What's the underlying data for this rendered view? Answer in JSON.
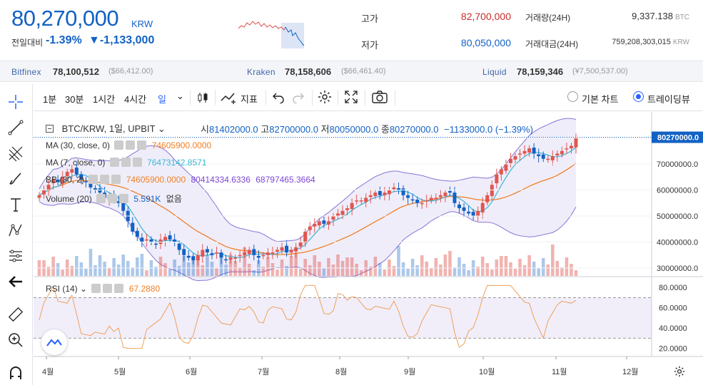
{
  "header": {
    "price": "80,270,000",
    "price_unit": "KRW",
    "change_label": "전일대비",
    "change_pct": "-1.39%",
    "change_abs": "▼-1,133,000",
    "high_label": "고가",
    "high_value": "82,700,000",
    "low_label": "저가",
    "low_value": "80,050,000",
    "volume_label": "거래량(24H)",
    "volume_value": "9,337.138",
    "volume_unit": "BTC",
    "turnover_label": "거래대금(24H)",
    "turnover_value": "759,208,303,015",
    "turnover_unit": "KRW"
  },
  "exchanges": [
    {
      "name": "Bitfinex",
      "value": "78,100,512",
      "foreign": "($66,412.00)"
    },
    {
      "name": "Kraken",
      "value": "78,158,606",
      "foreign": "($66,461.40)"
    },
    {
      "name": "Liquid",
      "value": "78,159,346",
      "foreign": "(¥7,500,537.00)"
    }
  ],
  "toolbar": {
    "intervals": [
      "1분",
      "30분",
      "1시간",
      "4시간",
      "일"
    ],
    "indicator_label": "지표",
    "view_basic": "기본 차트",
    "view_trading": "트레이딩뷰"
  },
  "legend": {
    "symbol": "BTC/KRW, 1일, UPBIT",
    "open_label": "시",
    "open": "81402000.0",
    "high_label": "고",
    "high": "82700000.0",
    "low_label": "저",
    "low": "80050000.0",
    "close_label": "종",
    "close": "80270000.0",
    "change": "−1133000.0 (−1.39%)",
    "ma1_label": "MA (30, close, 0)",
    "ma1_value": "74605900.0000",
    "ma2_label": "MA (7, close, 0)",
    "ma2_value": "76473142.8571",
    "bb_label": "BB (30, 2)",
    "bb_mid": "74605900.0000",
    "bb_upper": "80414334.6336",
    "bb_lower": "68797465.3664",
    "vol_label": "Volume (20)",
    "vol_value": "5.591K",
    "vol_extra": "없음",
    "rsi_label": "RSI (14)",
    "rsi_value": "67.2880"
  },
  "chart_data": {
    "type": "candlestick",
    "symbol": "BTC/KRW",
    "interval": "1일",
    "y_ticks": [
      "80270000.0",
      "70000000.0",
      "60000000.0",
      "50000000.0",
      "40000000.0",
      "30000000.0"
    ],
    "price_axis": [
      27000000,
      90000000
    ],
    "last_price": 80270000,
    "close_series": [
      58,
      60,
      62,
      64,
      63,
      65,
      67,
      68,
      66,
      64,
      63,
      61,
      60,
      59,
      57,
      58,
      56,
      55,
      52,
      48,
      44,
      42,
      40,
      41,
      40,
      39,
      41,
      42,
      41,
      40,
      37,
      35,
      34,
      33,
      35,
      37,
      36,
      35,
      36,
      34,
      33,
      34,
      34,
      35,
      36,
      37,
      35,
      34,
      35,
      36,
      36,
      37,
      38,
      36,
      37,
      38,
      40,
      44,
      46,
      47,
      48,
      47,
      48,
      50,
      51,
      52,
      53,
      55,
      56,
      56,
      57,
      58,
      59,
      58,
      59,
      60,
      61,
      60,
      58,
      57,
      56,
      55,
      55,
      56,
      57,
      57,
      58,
      59,
      59,
      55,
      53,
      52,
      51,
      50,
      52,
      55,
      58,
      62,
      66,
      68,
      70,
      72,
      73,
      74,
      75,
      76,
      74,
      73,
      72,
      72,
      73,
      74,
      75,
      76,
      77,
      80
    ],
    "rsi_ticks": [
      "80.0000",
      "60.0000",
      "40.0000",
      "20.0000"
    ],
    "rsi_last": 67.288,
    "x_labels": [
      "4월",
      "5월",
      "6월",
      "7월",
      "8월",
      "9월",
      "10월",
      "11월",
      "12월"
    ]
  },
  "colors": {
    "up": "#e0564f",
    "down": "#1261c4",
    "ma30": "#f07f22",
    "ma7": "#39b6d6",
    "bb": "#8a74d8",
    "rsi": "#f0a05a"
  }
}
